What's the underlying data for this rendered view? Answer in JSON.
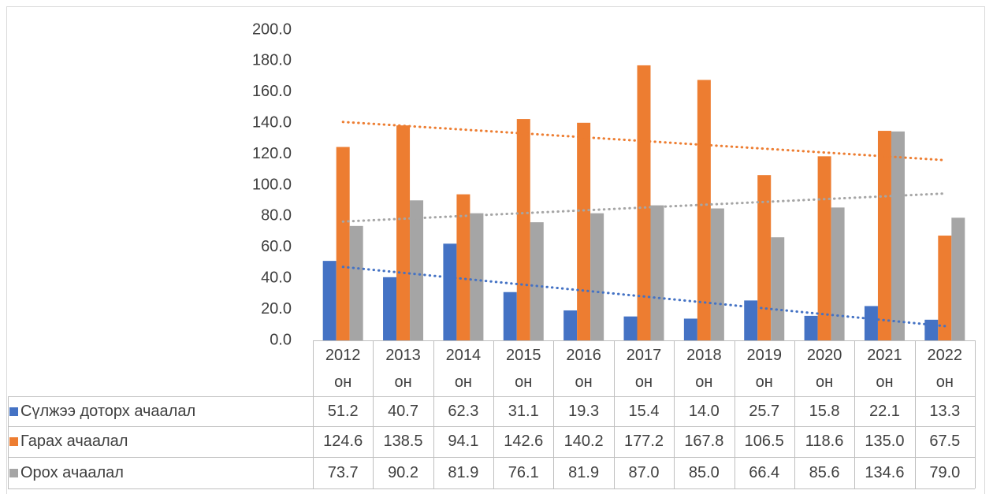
{
  "chart_data": {
    "type": "bar",
    "categories": [
      "2012 он",
      "2013 он",
      "2014 он",
      "2015 он",
      "2016 он",
      "2017 он",
      "2018 он",
      "2019 он",
      "2020 он",
      "2021 он",
      "2022 он"
    ],
    "series": [
      {
        "name": "Сүлжээ доторх ачаалал",
        "color": "#4472c4",
        "trendline": true,
        "values": [
          51.2,
          40.7,
          62.3,
          31.1,
          19.3,
          15.4,
          14.0,
          25.7,
          15.8,
          22.1,
          13.3
        ],
        "value_labels": [
          "51.2",
          "40.7",
          "62.3",
          "31.1",
          "19.3",
          "15.4",
          "14.0",
          "25.7",
          "15.8",
          "22.1",
          "13.3"
        ]
      },
      {
        "name": "Гарах ачаалал",
        "color": "#ed7d31",
        "trendline": true,
        "values": [
          124.6,
          138.5,
          94.1,
          142.6,
          140.2,
          177.2,
          167.8,
          106.5,
          118.6,
          135.0,
          67.5
        ],
        "value_labels": [
          "124.6",
          "138.5",
          "94.1",
          "142.6",
          "140.2",
          "177.2",
          "167.8",
          "106.5",
          "118.6",
          "135.0",
          "67.5"
        ]
      },
      {
        "name": "Орох ачаалал",
        "color": "#a5a5a5",
        "trendline": true,
        "values": [
          73.7,
          90.2,
          81.9,
          76.1,
          81.9,
          87.0,
          85.0,
          66.4,
          85.6,
          134.6,
          79.0
        ],
        "value_labels": [
          "73.7",
          "90.2",
          "81.9",
          "76.1",
          "81.9",
          "87.0",
          "85.0",
          "66.4",
          "85.6",
          "134.6",
          "79.0"
        ]
      }
    ],
    "ylim": [
      0,
      200
    ],
    "yticks": [
      {
        "value": 0,
        "label": "0.0"
      },
      {
        "value": 20,
        "label": "20.0"
      },
      {
        "value": 40,
        "label": "40.0"
      },
      {
        "value": 60,
        "label": "60.0"
      },
      {
        "value": 80,
        "label": "80.0"
      },
      {
        "value": 100,
        "label": "100.0"
      },
      {
        "value": 120,
        "label": "120.0"
      },
      {
        "value": 140,
        "label": "140.0"
      },
      {
        "value": 160,
        "label": "160.0"
      },
      {
        "value": 180,
        "label": "180.0"
      },
      {
        "value": 200,
        "label": "200.0"
      }
    ],
    "grid": false,
    "data_table": true
  }
}
